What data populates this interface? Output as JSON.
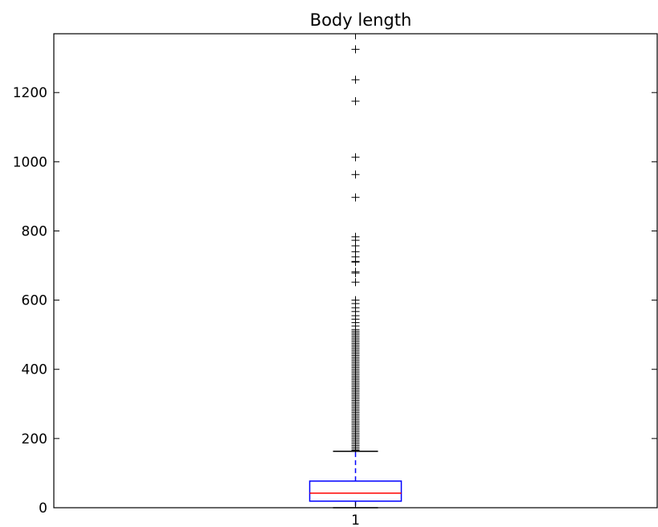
{
  "chart_data": {
    "type": "boxplot",
    "title": "Body length",
    "xlabel": "",
    "ylabel": "",
    "categories": [
      "1"
    ],
    "ylim": [
      0,
      1370
    ],
    "yticks": [
      0,
      200,
      400,
      600,
      800,
      1000,
      1200
    ],
    "yticklabels": [
      "0",
      "200",
      "400",
      "600",
      "800",
      "1000",
      "1200"
    ],
    "grid": false,
    "box": {
      "whisker_low": 0,
      "q1": 19,
      "median": 42,
      "q3": 77,
      "whisker_high": 163
    },
    "outliers": [
      1325,
      1237,
      1175,
      1013,
      963,
      897,
      783,
      773,
      757,
      740,
      725,
      712,
      710,
      682,
      678,
      652,
      600,
      590,
      578,
      567,
      555,
      545,
      535,
      525,
      515,
      510,
      505,
      500,
      495,
      490,
      485,
      480,
      475,
      470,
      465,
      460,
      455,
      450,
      445,
      440,
      435,
      430,
      425,
      420,
      415,
      410,
      405,
      400,
      395,
      390,
      385,
      380,
      375,
      370,
      365,
      360,
      355,
      350,
      345,
      340,
      335,
      330,
      325,
      320,
      315,
      310,
      305,
      300,
      295,
      290,
      285,
      280,
      275,
      270,
      265,
      260,
      255,
      250,
      245,
      240,
      235,
      230,
      225,
      220,
      215,
      210,
      205,
      200,
      195,
      190,
      185,
      180,
      175,
      170,
      166
    ],
    "colors": {
      "box": "#0000ff",
      "whisker": "#0000ff",
      "median": "#ff0000",
      "cap": "#000000",
      "outlier": "#000000"
    }
  }
}
